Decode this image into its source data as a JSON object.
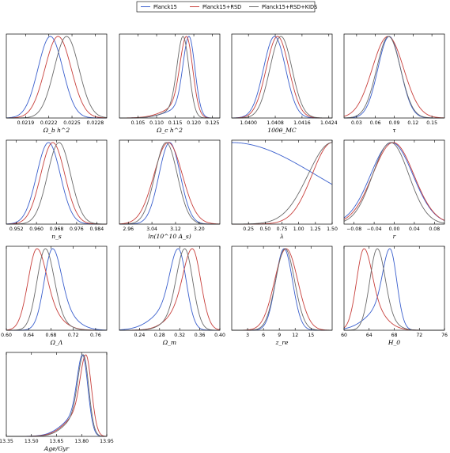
{
  "legend": {
    "entries": [
      {
        "label": "Planck15",
        "color": "#3a5fcd"
      },
      {
        "label": "Planck15+RSD",
        "color": "#c8403c"
      },
      {
        "label": "Planck15+RSD+KIDS",
        "color": "#6a6a6a"
      }
    ]
  },
  "chart_data": [
    {
      "type": "line",
      "xlabel": "Ω_b h^2",
      "xlim": [
        0.02165,
        0.02295
      ],
      "ticks": [
        0.0219,
        0.0222,
        0.0225,
        0.0228
      ],
      "tick_labels": [
        "0.0219",
        "0.0222",
        "0.0225",
        "0.0228"
      ],
      "series": [
        {
          "name": "Planck15",
          "mean": 0.02222,
          "sigma": 0.00016
        },
        {
          "name": "Planck15+RSD",
          "mean": 0.02232,
          "sigma": 0.00017
        },
        {
          "name": "Planck15+RSD+KIDS",
          "mean": 0.02243,
          "sigma": 0.00016
        }
      ]
    },
    {
      "type": "line",
      "xlabel": "Ω_c h^2",
      "xlim": [
        0.1,
        0.127
      ],
      "ticks": [
        0.105,
        0.11,
        0.115,
        0.12,
        0.125
      ],
      "tick_labels": [
        "0.105",
        "0.110",
        "0.115",
        "0.120",
        "0.125"
      ],
      "series": [
        {
          "name": "Planck15",
          "mean": 0.1187,
          "sigma": 0.0016,
          "left_tail": 0.005,
          "tail_weight": 0.15
        },
        {
          "name": "Planck15+RSD",
          "mean": 0.118,
          "sigma": 0.0017,
          "left_tail": 0.005,
          "tail_weight": 0.18
        },
        {
          "name": "Planck15+RSD+KIDS",
          "mean": 0.1171,
          "sigma": 0.0016,
          "left_tail": 0.0045,
          "tail_weight": 0.12
        }
      ]
    },
    {
      "type": "line",
      "xlabel": "100θ_MC",
      "xlim": [
        1.0395,
        1.0425
      ],
      "ticks": [
        1.04,
        1.0408,
        1.0416,
        1.0424
      ],
      "tick_labels": [
        "1.0400",
        "1.0408",
        "1.0416",
        "1.0424"
      ],
      "series": [
        {
          "name": "Planck15",
          "mean": 1.04078,
          "sigma": 0.00033
        },
        {
          "name": "Planck15+RSD",
          "mean": 1.04087,
          "sigma": 0.00034
        },
        {
          "name": "Planck15+RSD+KIDS",
          "mean": 1.04097,
          "sigma": 0.00033
        }
      ]
    },
    {
      "type": "line",
      "xlabel": "τ",
      "xlim": [
        0.01,
        0.17
      ],
      "ticks": [
        0.03,
        0.06,
        0.09,
        0.12,
        0.15
      ],
      "tick_labels": [
        "0.03",
        "0.06",
        "0.09",
        "0.12",
        "0.15"
      ],
      "series": [
        {
          "name": "Planck15",
          "mean": 0.082,
          "sigma": 0.018
        },
        {
          "name": "Planck15+RSD",
          "mean": 0.08,
          "sigma": 0.025
        },
        {
          "name": "Planck15+RSD+KIDS",
          "mean": 0.081,
          "sigma": 0.019
        }
      ]
    },
    {
      "type": "line",
      "xlabel": "n_s",
      "xlim": [
        0.948,
        0.988
      ],
      "ticks": [
        0.952,
        0.96,
        0.968,
        0.976,
        0.984
      ],
      "tick_labels": [
        "0.952",
        "0.960",
        "0.968",
        "0.976",
        "0.984"
      ],
      "series": [
        {
          "name": "Planck15",
          "mean": 0.9648,
          "sigma": 0.0047
        },
        {
          "name": "Planck15+RSD",
          "mean": 0.9665,
          "sigma": 0.0048
        },
        {
          "name": "Planck15+RSD+KIDS",
          "mean": 0.969,
          "sigma": 0.0046
        }
      ]
    },
    {
      "type": "line",
      "xlabel": "ln(10^10 A_s)",
      "xlim": [
        2.93,
        3.27
      ],
      "ticks": [
        2.96,
        3.04,
        3.12,
        3.2
      ],
      "tick_labels": [
        "2.96",
        "3.04",
        "3.12",
        "3.20"
      ],
      "series": [
        {
          "name": "Planck15",
          "mean": 3.1,
          "sigma": 0.036
        },
        {
          "name": "Planck15+RSD",
          "mean": 3.095,
          "sigma": 0.048
        },
        {
          "name": "Planck15+RSD+KIDS",
          "mean": 3.088,
          "sigma": 0.038
        }
      ]
    },
    {
      "type": "line",
      "xlabel": "λ",
      "xlim": [
        0.0,
        1.5
      ],
      "ticks": [
        0.25,
        0.5,
        0.75,
        1.0,
        1.25,
        1.5
      ],
      "tick_labels": [
        "0.25",
        "0.50",
        "0.75",
        "1.00",
        "1.25",
        "1.50"
      ],
      "series": [
        {
          "name": "Planck15",
          "mean": 0.0,
          "sigma": 1.25
        },
        {
          "name": "Planck15+RSD",
          "mean": 1.5,
          "sigma": 0.3
        },
        {
          "name": "Planck15+RSD+KIDS",
          "mean": 1.5,
          "sigma": 0.36
        }
      ]
    },
    {
      "type": "line",
      "xlabel": "r",
      "xlim": [
        -0.1,
        0.1
      ],
      "ticks": [
        -0.08,
        -0.04,
        0.0,
        0.04,
        0.08
      ],
      "tick_labels": [
        "−0.08",
        "−0.04",
        "0.00",
        "0.04",
        "0.08"
      ],
      "series": [
        {
          "name": "Planck15",
          "mean": -0.005,
          "sigma": 0.042
        },
        {
          "name": "Planck15+RSD",
          "mean": -0.002,
          "sigma": 0.041
        },
        {
          "name": "Planck15+RSD+KIDS",
          "mean": -0.007,
          "sigma": 0.036
        }
      ]
    },
    {
      "type": "line",
      "xlabel": "Ω_Λ",
      "xlim": [
        0.6,
        0.78
      ],
      "ticks": [
        0.6,
        0.64,
        0.68,
        0.72,
        0.76
      ],
      "tick_labels": [
        "0.60",
        "0.64",
        "0.68",
        "0.72",
        "0.76"
      ],
      "series": [
        {
          "name": "Planck15",
          "mean": 0.683,
          "sigma": 0.015,
          "right_tail": 0.03,
          "tail_weight": 0.35
        },
        {
          "name": "Planck15+RSD",
          "mean": 0.655,
          "sigma": 0.016,
          "right_tail": 0.03,
          "tail_weight": 0.4
        },
        {
          "name": "Planck15+RSD+KIDS",
          "mean": 0.67,
          "sigma": 0.015,
          "right_tail": 0.025,
          "tail_weight": 0.25
        }
      ]
    },
    {
      "type": "line",
      "xlabel": "Ω_m",
      "xlim": [
        0.2,
        0.4
      ],
      "ticks": [
        0.24,
        0.28,
        0.32,
        0.36,
        0.4
      ],
      "tick_labels": [
        "0.24",
        "0.28",
        "0.32",
        "0.36",
        "0.40"
      ],
      "series": [
        {
          "name": "Planck15",
          "mean": 0.317,
          "sigma": 0.016,
          "left_tail": 0.04,
          "tail_weight": 0.35
        },
        {
          "name": "Planck15+RSD",
          "mean": 0.345,
          "sigma": 0.017,
          "left_tail": 0.035,
          "tail_weight": 0.4
        },
        {
          "name": "Planck15+RSD+KIDS",
          "mean": 0.33,
          "sigma": 0.016,
          "left_tail": 0.03,
          "tail_weight": 0.25
        }
      ]
    },
    {
      "type": "line",
      "xlabel": "z_re",
      "xlim": [
        0.0,
        19.0
      ],
      "ticks": [
        3,
        6,
        9,
        12,
        15
      ],
      "tick_labels": [
        "3",
        "6",
        "9",
        "12",
        "15"
      ],
      "series": [
        {
          "name": "Planck15",
          "mean": 9.9,
          "sigma": 1.6
        },
        {
          "name": "Planck15+RSD",
          "mean": 10.3,
          "sigma": 2.2
        },
        {
          "name": "Planck15+RSD+KIDS",
          "mean": 10.1,
          "sigma": 1.8
        }
      ]
    },
    {
      "type": "line",
      "xlabel": "H_0",
      "xlim": [
        60.0,
        76.0
      ],
      "ticks": [
        60,
        64,
        68,
        72,
        76
      ],
      "tick_labels": [
        "60",
        "64",
        "68",
        "72",
        "76"
      ],
      "series": [
        {
          "name": "Planck15",
          "mean": 67.3,
          "sigma": 1.1,
          "left_tail": 3.0,
          "tail_weight": 0.35
        },
        {
          "name": "Planck15+RSD",
          "mean": 63.2,
          "sigma": 1.2,
          "right_tail": 2.5,
          "tail_weight": 0.4
        },
        {
          "name": "Planck15+RSD+KIDS",
          "mean": 65.3,
          "sigma": 1.2,
          "right_tail": 2.0,
          "tail_weight": 0.25
        }
      ]
    },
    {
      "type": "line",
      "xlabel": "Age/Gyr",
      "xlim": [
        13.35,
        13.95
      ],
      "ticks": [
        13.35,
        13.5,
        13.65,
        13.8,
        13.95
      ],
      "tick_labels": [
        "13.35",
        "13.50",
        "13.65",
        "13.80",
        "13.95"
      ],
      "series": [
        {
          "name": "Planck15",
          "mean": 13.805,
          "sigma": 0.032,
          "left_tail": 0.1,
          "tail_weight": 0.3
        },
        {
          "name": "Planck15+RSD",
          "mean": 13.825,
          "sigma": 0.033,
          "left_tail": 0.1,
          "tail_weight": 0.35
        },
        {
          "name": "Planck15+RSD+KIDS",
          "mean": 13.81,
          "sigma": 0.032,
          "left_tail": 0.09,
          "tail_weight": 0.3
        }
      ]
    }
  ]
}
